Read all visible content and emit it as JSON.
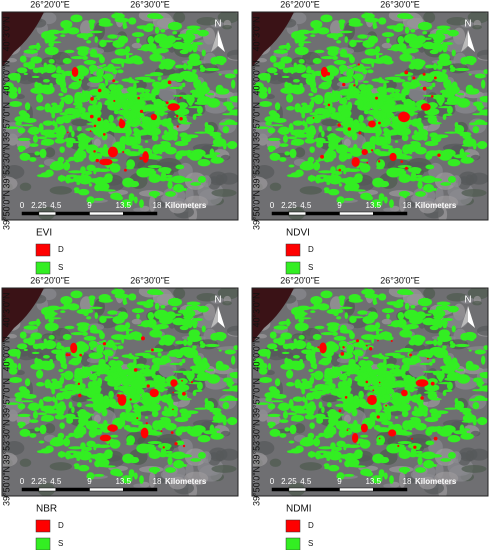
{
  "panels": [
    {
      "title": "EVI",
      "lon_labels": [
        "26°20'0\"E",
        "26°30'0\"E"
      ],
      "lat_labels": [
        "40°3'0\"N",
        "40°0'0\"N",
        "39°57'0\"N",
        "39°53'30\"N",
        "39°50'0\"N"
      ],
      "scale_labels": [
        "0",
        "2.25",
        "4.5",
        "9",
        "13.5",
        "18"
      ],
      "scale_unit": "Kilometers",
      "north": "N",
      "legend": [
        {
          "label": "D",
          "color": "#ff0000"
        },
        {
          "label": "S",
          "color": "#33ee22"
        }
      ]
    },
    {
      "title": "NDVI",
      "lon_labels": [
        "26°20'0\"E",
        "26°30'0\"E"
      ],
      "lat_labels": [
        "40°3'0\"N",
        "40°0'0\"N",
        "39°57'0\"N",
        "39°53'30\"N",
        "39°50'0\"N"
      ],
      "scale_labels": [
        "0",
        "2.25",
        "4.5",
        "9",
        "13.5",
        "18"
      ],
      "scale_unit": "Kilometers",
      "north": "N",
      "legend": [
        {
          "label": "D",
          "color": "#ff0000"
        },
        {
          "label": "S",
          "color": "#33ee22"
        }
      ]
    },
    {
      "title": "NBR",
      "lon_labels": [
        "26°20'0\"E",
        "26°30'0\"E"
      ],
      "lat_labels": [
        "40°3'0\"N",
        "40°0'0\"N",
        "39°57'0\"N",
        "39°53'30\"N",
        "39°50'0\"N"
      ],
      "scale_labels": [
        "0",
        "2.25",
        "4.5",
        "9",
        "13.5",
        "18"
      ],
      "scale_unit": "Kilometers",
      "north": "N",
      "legend": [
        {
          "label": "D",
          "color": "#ff0000"
        },
        {
          "label": "S",
          "color": "#33ee22"
        }
      ]
    },
    {
      "title": "NDMI",
      "lon_labels": [
        "26°20'0\"E",
        "26°30'0\"E"
      ],
      "lat_labels": [
        "40°3'0\"N",
        "40°0'0\"N",
        "39°57'0\"N",
        "39°53'30\"N",
        "39°50'0\"N"
      ],
      "scale_labels": [
        "0",
        "2.25",
        "4.5",
        "9",
        "13.5",
        "18"
      ],
      "scale_unit": "Kilometers",
      "north": "N",
      "legend": [
        {
          "label": "D",
          "color": "#ff0000"
        },
        {
          "label": "S",
          "color": "#33ee22"
        }
      ]
    }
  ]
}
